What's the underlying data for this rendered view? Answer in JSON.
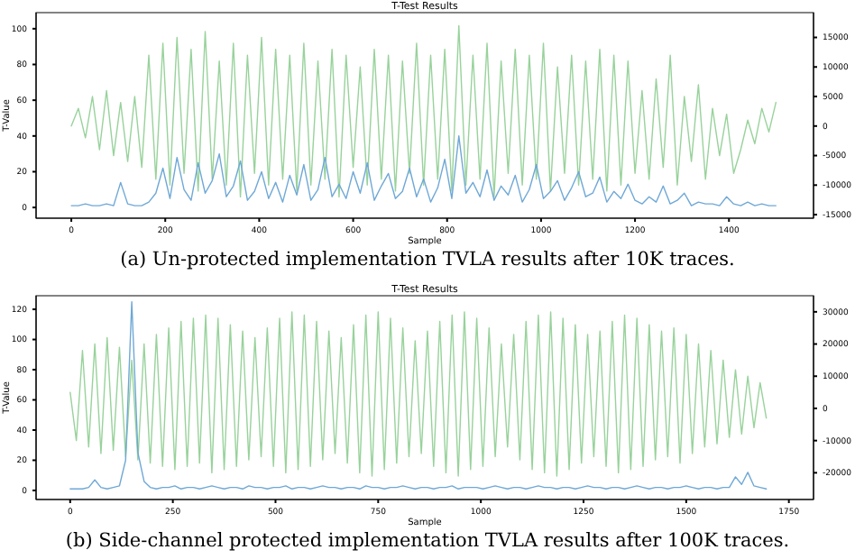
{
  "chart_data": [
    {
      "type": "line",
      "title": "T-Test Results",
      "xlabel": "Sample",
      "ylabel": "T-Value",
      "annotations": [
        "(a)  Un-protected implementation TVLA results after 10K traces."
      ],
      "xlim": [
        -75,
        1580
      ],
      "xticks": [
        0,
        200,
        400,
        600,
        800,
        1000,
        1200,
        1400
      ],
      "ylim": [
        -6,
        109
      ],
      "yticks": [
        0,
        20,
        40,
        60,
        80,
        100
      ],
      "y2lim": [
        -15600,
        19200
      ],
      "y2ticks": [
        -15000,
        -10000,
        -5000,
        0,
        5000,
        10000,
        15000
      ],
      "x": [
        0,
        15,
        30,
        45,
        60,
        75,
        90,
        105,
        120,
        135,
        150,
        165,
        180,
        195,
        210,
        225,
        240,
        255,
        270,
        285,
        300,
        315,
        330,
        345,
        360,
        375,
        390,
        405,
        420,
        435,
        450,
        465,
        480,
        495,
        510,
        525,
        540,
        555,
        570,
        585,
        600,
        615,
        630,
        645,
        660,
        675,
        690,
        705,
        720,
        735,
        750,
        765,
        780,
        795,
        810,
        825,
        840,
        855,
        870,
        885,
        900,
        915,
        930,
        945,
        960,
        975,
        990,
        1005,
        1020,
        1035,
        1050,
        1065,
        1080,
        1095,
        1110,
        1125,
        1140,
        1155,
        1170,
        1185,
        1200,
        1215,
        1230,
        1245,
        1260,
        1275,
        1290,
        1305,
        1320,
        1335,
        1350,
        1365,
        1380,
        1395,
        1410,
        1425,
        1440,
        1455,
        1470,
        1485,
        1500
      ],
      "series": [
        {
          "type": "line",
          "axis": "y2",
          "color": "#98d29b",
          "values": [
            0,
            3000,
            -2000,
            5000,
            -4000,
            6000,
            -5000,
            4000,
            -6000,
            5000,
            -7000,
            12000,
            -9000,
            14000,
            -10000,
            15000,
            -8000,
            13000,
            -11000,
            16000,
            -9000,
            11000,
            -10000,
            14000,
            -12000,
            12000,
            -8000,
            15000,
            -10000,
            13000,
            -9000,
            12000,
            -11000,
            14000,
            -10000,
            11000,
            -9000,
            13000,
            -12000,
            12000,
            -7000,
            10000,
            -10000,
            13000,
            -9000,
            12000,
            -11000,
            11000,
            -8000,
            14000,
            -10000,
            12000,
            -9000,
            13000,
            -11000,
            17000,
            -10000,
            12000,
            -9000,
            14000,
            -12000,
            11000,
            -8000,
            13000,
            -10000,
            12000,
            -9000,
            14000,
            -11000,
            10000,
            -8000,
            12000,
            -10000,
            11000,
            -9000,
            13000,
            -11000,
            12000,
            -10000,
            11000,
            -8000,
            6000,
            -9000,
            8000,
            -7000,
            12000,
            -10000,
            5000,
            -6000,
            7000,
            -9000,
            3000,
            -5000,
            2000,
            -8000,
            -4000,
            1000,
            -3000,
            3000,
            -1000,
            4000
          ]
        },
        {
          "type": "line",
          "color": "#6fa8d6",
          "values": [
            1,
            1,
            2,
            1,
            1,
            2,
            1,
            14,
            2,
            1,
            1,
            3,
            8,
            22,
            5,
            28,
            10,
            4,
            25,
            8,
            15,
            30,
            6,
            12,
            26,
            4,
            9,
            20,
            5,
            14,
            3,
            18,
            7,
            24,
            4,
            10,
            28,
            6,
            13,
            5,
            20,
            8,
            25,
            4,
            12,
            19,
            5,
            9,
            22,
            6,
            16,
            3,
            11,
            27,
            5,
            40,
            8,
            14,
            6,
            21,
            4,
            12,
            7,
            18,
            3,
            10,
            24,
            5,
            9,
            15,
            4,
            11,
            20,
            6,
            8,
            17,
            3,
            9,
            5,
            13,
            4,
            2,
            6,
            3,
            12,
            2,
            4,
            8,
            1,
            3,
            2,
            2,
            1,
            6,
            2,
            1,
            3,
            1,
            2,
            1,
            1
          ]
        }
      ]
    },
    {
      "type": "line",
      "title": "T-Test Results",
      "xlabel": "Sample",
      "ylabel": "T-Value",
      "annotations": [
        "(b)  Side-channel protected implementation TVLA results after 100K traces."
      ],
      "xlim": [
        -83,
        1810
      ],
      "xticks": [
        0,
        250,
        500,
        750,
        1000,
        1250,
        1500,
        1750
      ],
      "ylim": [
        -6,
        129
      ],
      "yticks": [
        0,
        20,
        40,
        60,
        80,
        100,
        120
      ],
      "y2lim": [
        -28300,
        35000
      ],
      "y2ticks": [
        -20000,
        -10000,
        0,
        10000,
        20000,
        30000
      ],
      "x": [
        0,
        15,
        30,
        45,
        60,
        75,
        90,
        105,
        120,
        135,
        150,
        165,
        180,
        195,
        210,
        225,
        240,
        255,
        270,
        285,
        300,
        315,
        330,
        345,
        360,
        375,
        390,
        405,
        420,
        435,
        450,
        465,
        480,
        495,
        510,
        525,
        540,
        555,
        570,
        585,
        600,
        615,
        630,
        645,
        660,
        675,
        690,
        705,
        720,
        735,
        750,
        765,
        780,
        795,
        810,
        825,
        840,
        855,
        870,
        885,
        900,
        915,
        930,
        945,
        960,
        975,
        990,
        1005,
        1020,
        1035,
        1050,
        1065,
        1080,
        1095,
        1110,
        1125,
        1140,
        1155,
        1170,
        1185,
        1200,
        1215,
        1230,
        1245,
        1260,
        1275,
        1290,
        1305,
        1320,
        1335,
        1350,
        1365,
        1380,
        1395,
        1410,
        1425,
        1440,
        1455,
        1470,
        1485,
        1500,
        1515,
        1530,
        1545,
        1560,
        1575,
        1590,
        1605,
        1620,
        1635,
        1650,
        1665,
        1680,
        1695
      ],
      "series": [
        {
          "type": "line",
          "axis": "y2",
          "color": "#98d29b",
          "values": [
            5000,
            -10000,
            18000,
            -12000,
            20000,
            -14000,
            22000,
            -13000,
            19000,
            -15000,
            15000,
            -16000,
            20000,
            -17000,
            23000,
            -18000,
            25000,
            -19000,
            27000,
            -18000,
            28000,
            -17000,
            29000,
            -20000,
            28000,
            -19000,
            26000,
            -18000,
            24000,
            -16000,
            22000,
            -15000,
            25000,
            -18000,
            28000,
            -20000,
            30000,
            -19000,
            29000,
            -18000,
            27000,
            -16000,
            24000,
            -14000,
            22000,
            -17000,
            26000,
            -20000,
            29000,
            -21000,
            30000,
            -19000,
            28000,
            -17000,
            25000,
            -15000,
            21000,
            -14000,
            24000,
            -18000,
            27000,
            -20000,
            29000,
            -21000,
            30000,
            -19000,
            28000,
            -18000,
            25000,
            -15000,
            20000,
            -12000,
            23000,
            -16000,
            27000,
            -19000,
            29000,
            -20000,
            30000,
            -21000,
            28000,
            -19000,
            26000,
            -17000,
            23000,
            -15000,
            24000,
            -18000,
            27000,
            -20000,
            29000,
            -19000,
            28000,
            -18000,
            26000,
            -16000,
            24000,
            -15000,
            25000,
            -17000,
            23000,
            -14000,
            20000,
            -12000,
            18000,
            -11000,
            15000,
            -9000,
            12000,
            -8000,
            10000,
            -6000,
            8000,
            -3000
          ]
        },
        {
          "type": "line",
          "color": "#6fa8d6",
          "values": [
            1,
            1,
            1,
            2,
            7,
            2,
            1,
            2,
            3,
            20,
            125,
            25,
            6,
            2,
            1,
            2,
            2,
            3,
            1,
            2,
            2,
            1,
            2,
            3,
            2,
            1,
            2,
            2,
            1,
            3,
            2,
            2,
            1,
            2,
            2,
            3,
            1,
            2,
            2,
            1,
            2,
            3,
            2,
            2,
            1,
            2,
            2,
            1,
            3,
            2,
            2,
            1,
            2,
            2,
            3,
            2,
            1,
            2,
            2,
            1,
            2,
            2,
            3,
            1,
            2,
            2,
            2,
            1,
            2,
            3,
            2,
            1,
            2,
            2,
            1,
            2,
            3,
            2,
            2,
            1,
            2,
            2,
            1,
            2,
            3,
            2,
            2,
            1,
            2,
            2,
            1,
            2,
            3,
            2,
            1,
            2,
            2,
            1,
            2,
            2,
            3,
            2,
            1,
            2,
            2,
            1,
            2,
            2,
            9,
            4,
            12,
            3,
            2,
            1
          ]
        }
      ]
    }
  ]
}
